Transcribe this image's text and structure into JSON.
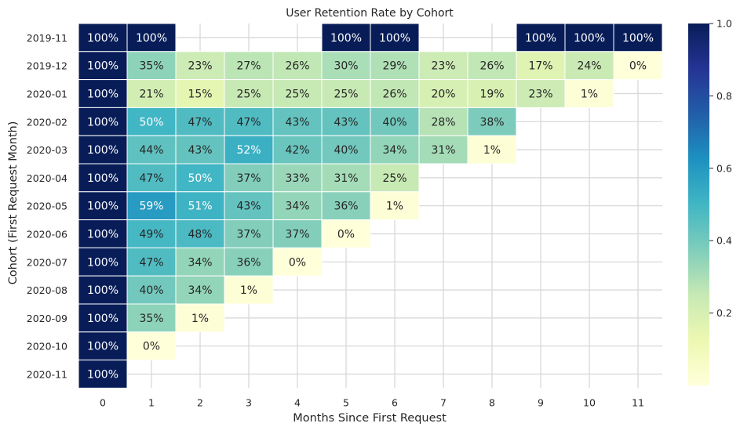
{
  "chart_data": {
    "type": "heatmap",
    "title": "User Retention Rate by Cohort",
    "xlabel": "Months Since First Request",
    "ylabel": "Cohort (First Request Month)",
    "x_categories": [
      "0",
      "1",
      "2",
      "3",
      "4",
      "5",
      "6",
      "7",
      "8",
      "9",
      "10",
      "11"
    ],
    "y_categories": [
      "2019-11",
      "2019-12",
      "2020-01",
      "2020-02",
      "2020-03",
      "2020-04",
      "2020-05",
      "2020-06",
      "2020-07",
      "2020-08",
      "2020-09",
      "2020-10",
      "2020-11"
    ],
    "values": [
      [
        1.0,
        1.0,
        null,
        null,
        null,
        1.0,
        1.0,
        null,
        null,
        1.0,
        1.0,
        1.0
      ],
      [
        1.0,
        0.35,
        0.23,
        0.27,
        0.26,
        0.3,
        0.29,
        0.23,
        0.26,
        0.17,
        0.24,
        0.0
      ],
      [
        1.0,
        0.21,
        0.15,
        0.25,
        0.25,
        0.25,
        0.26,
        0.2,
        0.19,
        0.23,
        0.01,
        null
      ],
      [
        1.0,
        0.5,
        0.47,
        0.47,
        0.43,
        0.43,
        0.4,
        0.28,
        0.38,
        null,
        null,
        null
      ],
      [
        1.0,
        0.44,
        0.43,
        0.52,
        0.42,
        0.4,
        0.34,
        0.31,
        0.01,
        null,
        null,
        null
      ],
      [
        1.0,
        0.47,
        0.5,
        0.37,
        0.33,
        0.31,
        0.25,
        null,
        null,
        null,
        null,
        null
      ],
      [
        1.0,
        0.59,
        0.51,
        0.43,
        0.34,
        0.36,
        0.01,
        null,
        null,
        null,
        null,
        null
      ],
      [
        1.0,
        0.49,
        0.48,
        0.37,
        0.37,
        0.0,
        null,
        null,
        null,
        null,
        null,
        null
      ],
      [
        1.0,
        0.47,
        0.34,
        0.36,
        0.0,
        null,
        null,
        null,
        null,
        null,
        null,
        null
      ],
      [
        1.0,
        0.4,
        0.34,
        0.01,
        null,
        null,
        null,
        null,
        null,
        null,
        null,
        null
      ],
      [
        1.0,
        0.35,
        0.01,
        null,
        null,
        null,
        null,
        null,
        null,
        null,
        null,
        null
      ],
      [
        1.0,
        0.0,
        null,
        null,
        null,
        null,
        null,
        null,
        null,
        null,
        null,
        null
      ],
      [
        1.0,
        null,
        null,
        null,
        null,
        null,
        null,
        null,
        null,
        null,
        null,
        null
      ]
    ],
    "cell_labels": [
      [
        "100%",
        "100%",
        "",
        "",
        "",
        "100%",
        "100%",
        "",
        "",
        "100%",
        "100%",
        "100%"
      ],
      [
        "100%",
        "35%",
        "23%",
        "27%",
        "26%",
        "30%",
        "29%",
        "23%",
        "26%",
        "17%",
        "24%",
        "0%"
      ],
      [
        "100%",
        "21%",
        "15%",
        "25%",
        "25%",
        "25%",
        "26%",
        "20%",
        "19%",
        "23%",
        "1%",
        ""
      ],
      [
        "100%",
        "50%",
        "47%",
        "47%",
        "43%",
        "43%",
        "40%",
        "28%",
        "38%",
        "",
        "",
        ""
      ],
      [
        "100%",
        "44%",
        "43%",
        "52%",
        "42%",
        "40%",
        "34%",
        "31%",
        "1%",
        "",
        "",
        ""
      ],
      [
        "100%",
        "47%",
        "50%",
        "37%",
        "33%",
        "31%",
        "25%",
        "",
        "",
        "",
        "",
        ""
      ],
      [
        "100%",
        "59%",
        "51%",
        "43%",
        "34%",
        "36%",
        "1%",
        "",
        "",
        "",
        "",
        ""
      ],
      [
        "100%",
        "49%",
        "48%",
        "37%",
        "37%",
        "0%",
        "",
        "",
        "",
        "",
        "",
        ""
      ],
      [
        "100%",
        "47%",
        "34%",
        "36%",
        "0%",
        "",
        "",
        "",
        "",
        "",
        "",
        ""
      ],
      [
        "100%",
        "40%",
        "34%",
        "1%",
        "",
        "",
        "",
        "",
        "",
        "",
        "",
        ""
      ],
      [
        "100%",
        "35%",
        "1%",
        "",
        "",
        "",
        "",
        "",
        "",
        "",
        "",
        ""
      ],
      [
        "100%",
        "0%",
        "",
        "",
        "",
        "",
        "",
        "",
        "",
        "",
        "",
        ""
      ],
      [
        "100%",
        "",
        "",
        "",
        "",
        "",
        "",
        "",
        "",
        "",
        "",
        ""
      ]
    ],
    "colorbar": {
      "colormap": "YlGnBu",
      "range": [
        0.0,
        1.0
      ],
      "ticks": [
        0.2,
        0.4,
        0.6,
        0.8,
        1.0
      ],
      "tick_labels": [
        "0.2",
        "0.4",
        "0.6",
        "0.8",
        "1.0"
      ]
    },
    "grid": true,
    "legend": "colorbar-right"
  }
}
